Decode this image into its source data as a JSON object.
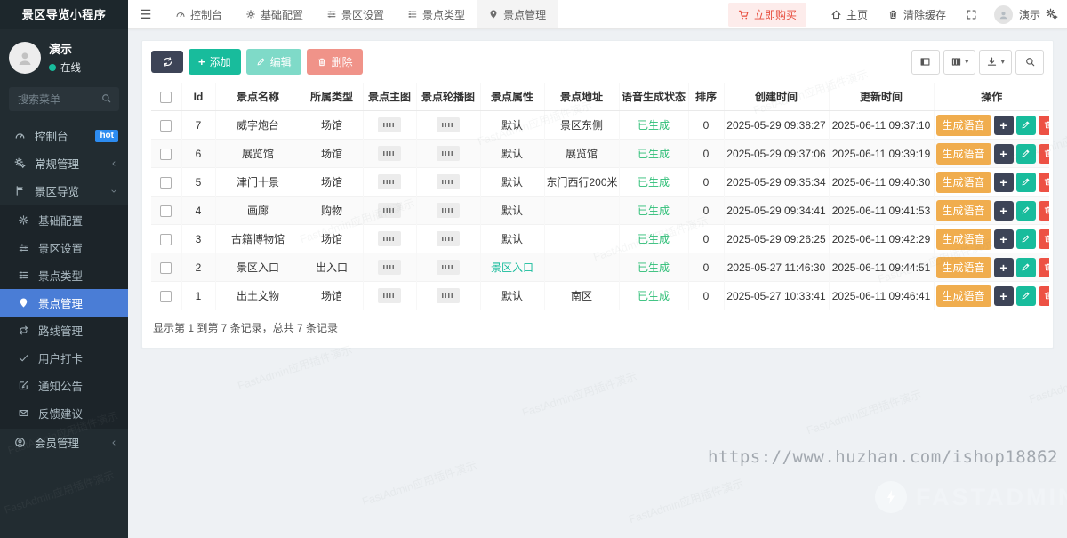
{
  "app": {
    "title": "景区导览小程序"
  },
  "sidebar": {
    "user": {
      "name": "演示",
      "status": "在线"
    },
    "search_placeholder": "搜索菜单",
    "menu": [
      {
        "name": "dashboard",
        "label": "控制台",
        "icon": "gauge-icon",
        "badge": "hot"
      },
      {
        "name": "general",
        "label": "常规管理",
        "icon": "gears-icon",
        "chevron": "left"
      },
      {
        "name": "scenic-tour",
        "label": "景区导览",
        "icon": "flag-icon",
        "chevron": "down",
        "children": [
          {
            "name": "base-config",
            "label": "基础配置",
            "icon": "gear-icon"
          },
          {
            "name": "scenic-settings",
            "label": "景区设置",
            "icon": "sliders-icon"
          },
          {
            "name": "spot-type",
            "label": "景点类型",
            "icon": "list-icon"
          },
          {
            "name": "spot-manage",
            "label": "景点管理",
            "icon": "marker-icon",
            "active": true
          },
          {
            "name": "route-manage",
            "label": "路线管理",
            "icon": "route-icon"
          },
          {
            "name": "user-checkin",
            "label": "用户打卡",
            "icon": "check-icon"
          },
          {
            "name": "notice",
            "label": "通知公告",
            "icon": "edit-square-icon"
          },
          {
            "name": "feedback",
            "label": "反馈建议",
            "icon": "envelope-icon"
          }
        ]
      },
      {
        "name": "member-manage",
        "label": "会员管理",
        "icon": "member-icon",
        "chevron": "left"
      }
    ]
  },
  "topbar": {
    "tabs": [
      {
        "name": "dashboard",
        "label": "控制台",
        "icon": "gauge-icon"
      },
      {
        "name": "base-config",
        "label": "基础配置",
        "icon": "gear-icon"
      },
      {
        "name": "scenic-settings",
        "label": "景区设置",
        "icon": "sliders-icon"
      },
      {
        "name": "spot-type",
        "label": "景点类型",
        "icon": "list-icon"
      },
      {
        "name": "spot-manage",
        "label": "景点管理",
        "icon": "marker-icon",
        "active": true
      }
    ],
    "buy_label": "立即购买",
    "home_label": "主页",
    "clear_cache_label": "清除缓存",
    "user_name": "演示"
  },
  "toolbar": {
    "add_label": "添加",
    "edit_label": "编辑",
    "delete_label": "删除"
  },
  "table": {
    "columns": [
      "Id",
      "景点名称",
      "所属类型",
      "景点主图",
      "景点轮播图",
      "景点属性",
      "景点地址",
      "语音生成状态",
      "排序",
      "创建时间",
      "更新时间",
      "操作"
    ],
    "voice_action_label": "生成语音",
    "rows": [
      {
        "id": "7",
        "name": "威字炮台",
        "type": "场馆",
        "attr": "默认",
        "attr_green": false,
        "address": "景区东侧",
        "voice": "已生成",
        "sort": "0",
        "created": "2025-05-29 09:38:27",
        "updated": "2025-06-11 09:37:10"
      },
      {
        "id": "6",
        "name": "展览馆",
        "type": "场馆",
        "attr": "默认",
        "attr_green": false,
        "address": "展览馆",
        "voice": "已生成",
        "sort": "0",
        "created": "2025-05-29 09:37:06",
        "updated": "2025-06-11 09:39:19"
      },
      {
        "id": "5",
        "name": "津门十景",
        "type": "场馆",
        "attr": "默认",
        "attr_green": false,
        "address": "东门西行200米",
        "voice": "已生成",
        "sort": "0",
        "created": "2025-05-29 09:35:34",
        "updated": "2025-06-11 09:40:30"
      },
      {
        "id": "4",
        "name": "画廊",
        "type": "购物",
        "attr": "默认",
        "attr_green": false,
        "address": "",
        "voice": "已生成",
        "sort": "0",
        "created": "2025-05-29 09:34:41",
        "updated": "2025-06-11 09:41:53"
      },
      {
        "id": "3",
        "name": "古籍博物馆",
        "type": "场馆",
        "attr": "默认",
        "attr_green": false,
        "address": "",
        "voice": "已生成",
        "sort": "0",
        "created": "2025-05-29 09:26:25",
        "updated": "2025-06-11 09:42:29"
      },
      {
        "id": "2",
        "name": "景区入口",
        "type": "出入口",
        "attr": "景区入口",
        "attr_green": true,
        "address": "",
        "voice": "已生成",
        "sort": "0",
        "created": "2025-05-27 11:46:30",
        "updated": "2025-06-11 09:44:51"
      },
      {
        "id": "1",
        "name": "出土文物",
        "type": "场馆",
        "attr": "默认",
        "attr_green": false,
        "address": "南区",
        "voice": "已生成",
        "sort": "0",
        "created": "2025-05-27 10:33:41",
        "updated": "2025-06-11 09:46:41"
      }
    ],
    "summary": "显示第 1 到第 7 条记录，总共 7 条记录"
  },
  "watermarks": {
    "url": "https://www.huzhan.com/ishop18862",
    "brand": "FASTADMIN",
    "tile": "FastAdmin应用插件演示"
  },
  "colors": {
    "sidebar_bg": "#222c31",
    "submenu_bg": "#1c2429",
    "active_item": "#4a7dd6",
    "accent_green": "#18bc9c",
    "accent_red": "#e74c3c",
    "accent_orange": "#f0ad4e",
    "dark_button": "#3d4457",
    "hot_badge": "#2d8cf0",
    "voice_ok_text": "#2dbe76",
    "content_bg": "#eef1f4"
  }
}
